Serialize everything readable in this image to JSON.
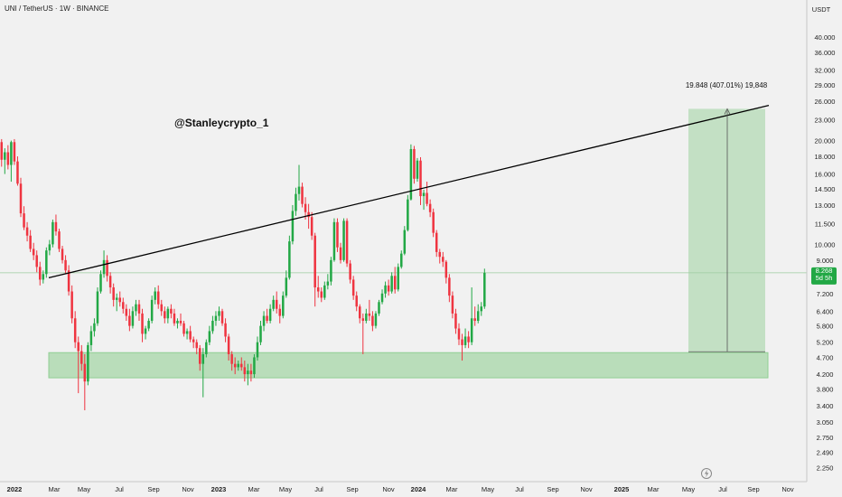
{
  "header": {
    "symbol_title": "UNI / TetherUS · 1W · BINANCE",
    "currency": "USDT"
  },
  "annotations": {
    "watermark": "@Stanleycrypto_1",
    "measure_label": "19.848 (407.01%) 19,848"
  },
  "last_price": {
    "value": "8.268",
    "countdown": "5d 5h"
  },
  "colors": {
    "up": "#22a845",
    "down": "#ef3440",
    "zone_fill": "#a5d6a7",
    "background": "#f1f1f1",
    "trendline": "#000000"
  },
  "chart_data": {
    "type": "candlestick",
    "symbol": "UNI / TetherUS",
    "interval": "1W",
    "exchange": "BINANCE",
    "y_scale": "log",
    "ylim": [
      2.15,
      44
    ],
    "price_ticks": [
      "40.000",
      "36.000",
      "32.000",
      "29.000",
      "26.000",
      "23.000",
      "20.000",
      "18.000",
      "16.000",
      "14.500",
      "13.000",
      "11.500",
      "10.000",
      "9.000",
      "8.268",
      "7.200",
      "6.400",
      "5.800",
      "5.200",
      "4.700",
      "4.200",
      "3.800",
      "3.400",
      "3.050",
      "2.750",
      "2.490",
      "2.250"
    ],
    "time_ticks": [
      "2022",
      "Mar",
      "May",
      "Jul",
      "Sep",
      "Nov",
      "2023",
      "Mar",
      "May",
      "Jul",
      "Sep",
      "Nov",
      "2024",
      "Mar",
      "May",
      "Jul",
      "Sep",
      "Nov",
      "2025",
      "Mar",
      "May",
      "Jul",
      "Sep",
      "Nov"
    ],
    "year_ticks": [
      "2022",
      "2023",
      "2024",
      "2025"
    ],
    "support_zone": [
      4.1,
      4.85
    ],
    "trendline": [
      {
        "date": "2022-03",
        "price": 8.0
      },
      {
        "date": "2025-08",
        "price": 25.3
      }
    ],
    "measure": {
      "from": 4.88,
      "to": 24.73,
      "change": "19.848 (407.01%)"
    },
    "target_box": [
      4.88,
      24.73
    ],
    "last_price": 8.268,
    "candles": [
      [
        19.8,
        20.2,
        16.8,
        17.6
      ],
      [
        17.6,
        19.0,
        16.0,
        18.5
      ],
      [
        18.5,
        19.4,
        16.5,
        17.0
      ],
      [
        17.0,
        20.0,
        15.2,
        19.8
      ],
      [
        19.8,
        20.2,
        17.0,
        17.4
      ],
      [
        17.4,
        18.0,
        14.8,
        15.0
      ],
      [
        15.0,
        15.6,
        12.0,
        12.3
      ],
      [
        12.3,
        12.9,
        11.0,
        11.2
      ],
      [
        11.2,
        11.6,
        10.2,
        10.6
      ],
      [
        10.6,
        11.0,
        9.5,
        9.7
      ],
      [
        9.7,
        10.1,
        9.0,
        9.3
      ],
      [
        9.3,
        9.6,
        8.3,
        8.6
      ],
      [
        8.6,
        8.9,
        7.6,
        7.9
      ],
      [
        7.9,
        8.4,
        7.7,
        8.2
      ],
      [
        8.2,
        9.8,
        8.0,
        9.6
      ],
      [
        9.6,
        10.3,
        9.3,
        10.0
      ],
      [
        10.0,
        11.8,
        9.8,
        11.6
      ],
      [
        11.6,
        12.2,
        10.6,
        10.9
      ],
      [
        10.9,
        11.1,
        9.5,
        9.7
      ],
      [
        9.7,
        9.9,
        8.8,
        9.0
      ],
      [
        9.0,
        9.3,
        8.2,
        8.4
      ],
      [
        8.4,
        8.7,
        7.1,
        7.3
      ],
      [
        7.3,
        7.6,
        5.9,
        6.1
      ],
      [
        6.1,
        6.4,
        5.0,
        5.2
      ],
      [
        5.2,
        5.4,
        3.7,
        4.9
      ],
      [
        4.9,
        5.1,
        4.3,
        4.5
      ],
      [
        4.5,
        4.8,
        3.3,
        4.0
      ],
      [
        4.0,
        5.2,
        3.9,
        5.1
      ],
      [
        5.1,
        5.8,
        4.9,
        5.6
      ],
      [
        5.6,
        6.1,
        5.4,
        5.9
      ],
      [
        5.9,
        7.5,
        5.8,
        7.3
      ],
      [
        7.3,
        8.4,
        7.2,
        8.2
      ],
      [
        8.2,
        9.6,
        8.0,
        9.0
      ],
      [
        9.0,
        9.3,
        7.8,
        8.1
      ],
      [
        8.1,
        8.3,
        7.2,
        7.5
      ],
      [
        7.5,
        7.7,
        6.6,
        6.9
      ],
      [
        6.9,
        7.2,
        6.4,
        7.0
      ],
      [
        7.0,
        7.3,
        6.6,
        6.8
      ],
      [
        6.8,
        7.0,
        6.3,
        6.5
      ],
      [
        6.5,
        6.7,
        6.0,
        6.2
      ],
      [
        6.2,
        6.5,
        5.6,
        5.8
      ],
      [
        5.8,
        6.6,
        5.7,
        6.4
      ],
      [
        6.4,
        6.9,
        6.2,
        6.7
      ],
      [
        6.7,
        6.9,
        6.0,
        6.3
      ],
      [
        6.3,
        6.5,
        5.2,
        5.5
      ],
      [
        5.5,
        5.8,
        5.3,
        5.7
      ],
      [
        5.7,
        6.1,
        5.6,
        6.0
      ],
      [
        6.0,
        7.1,
        5.9,
        6.9
      ],
      [
        6.9,
        7.5,
        6.7,
        7.3
      ],
      [
        7.3,
        7.6,
        6.5,
        6.7
      ],
      [
        6.7,
        6.9,
        6.2,
        6.4
      ],
      [
        6.4,
        6.6,
        5.9,
        6.1
      ],
      [
        6.1,
        6.6,
        5.9,
        6.5
      ],
      [
        6.5,
        6.7,
        6.1,
        6.3
      ],
      [
        6.3,
        6.5,
        5.8,
        5.9
      ],
      [
        5.9,
        6.1,
        5.7,
        6.0
      ],
      [
        6.0,
        6.3,
        5.8,
        5.9
      ],
      [
        5.9,
        6.0,
        5.4,
        5.5
      ],
      [
        5.5,
        5.7,
        5.3,
        5.6
      ],
      [
        5.6,
        5.8,
        5.2,
        5.3
      ],
      [
        5.3,
        5.4,
        5.0,
        5.2
      ],
      [
        5.2,
        5.3,
        4.8,
        5.0
      ],
      [
        5.0,
        5.1,
        4.3,
        4.5
      ],
      [
        4.5,
        5.0,
        3.6,
        4.8
      ],
      [
        4.8,
        5.3,
        4.7,
        5.2
      ],
      [
        5.2,
        5.8,
        5.1,
        5.6
      ],
      [
        5.6,
        6.2,
        5.5,
        6.0
      ],
      [
        6.0,
        6.4,
        5.8,
        6.2
      ],
      [
        6.2,
        6.6,
        6.0,
        6.4
      ],
      [
        6.4,
        6.5,
        5.8,
        5.9
      ],
      [
        5.9,
        6.1,
        5.2,
        5.4
      ],
      [
        5.4,
        5.5,
        4.6,
        4.8
      ],
      [
        4.8,
        4.9,
        4.3,
        4.5
      ],
      [
        4.5,
        4.7,
        4.2,
        4.4
      ],
      [
        4.4,
        4.6,
        4.3,
        4.5
      ],
      [
        4.5,
        4.7,
        4.3,
        4.4
      ],
      [
        4.4,
        4.6,
        4.0,
        4.2
      ],
      [
        4.2,
        4.5,
        3.9,
        4.3
      ],
      [
        4.3,
        4.5,
        4.0,
        4.2
      ],
      [
        4.2,
        4.8,
        4.1,
        4.7
      ],
      [
        4.7,
        5.4,
        4.6,
        5.2
      ],
      [
        5.2,
        6.0,
        5.1,
        5.8
      ],
      [
        5.8,
        6.4,
        5.6,
        6.2
      ],
      [
        6.2,
        6.5,
        5.9,
        6.0
      ],
      [
        6.0,
        6.7,
        5.9,
        6.5
      ],
      [
        6.5,
        7.1,
        6.4,
        6.9
      ],
      [
        6.9,
        7.3,
        6.3,
        6.5
      ],
      [
        6.5,
        6.7,
        5.9,
        6.2
      ],
      [
        6.2,
        7.3,
        6.1,
        7.1
      ],
      [
        7.1,
        8.4,
        7.0,
        8.0
      ],
      [
        8.0,
        10.6,
        7.9,
        10.2
      ],
      [
        10.2,
        13.0,
        10.0,
        12.5
      ],
      [
        12.5,
        14.6,
        12.1,
        14.0
      ],
      [
        14.0,
        17.0,
        13.4,
        14.7
      ],
      [
        14.7,
        15.1,
        12.8,
        13.1
      ],
      [
        13.1,
        13.7,
        11.8,
        12.4
      ],
      [
        12.4,
        13.1,
        11.1,
        12.0
      ],
      [
        12.0,
        12.4,
        10.3,
        10.6
      ],
      [
        10.6,
        10.8,
        6.6,
        7.5
      ],
      [
        7.5,
        8.1,
        7.0,
        7.3
      ],
      [
        7.3,
        7.5,
        6.8,
        7.0
      ],
      [
        7.0,
        7.8,
        6.9,
        7.6
      ],
      [
        7.6,
        8.2,
        7.4,
        7.8
      ],
      [
        7.8,
        9.2,
        7.6,
        9.0
      ],
      [
        9.0,
        11.9,
        8.9,
        11.6
      ],
      [
        11.6,
        11.9,
        9.5,
        9.8
      ],
      [
        9.8,
        10.1,
        8.8,
        9.0
      ],
      [
        9.0,
        11.9,
        8.9,
        11.7
      ],
      [
        11.7,
        11.9,
        8.6,
        8.8
      ],
      [
        8.8,
        9.0,
        7.7,
        7.9
      ],
      [
        7.9,
        8.1,
        6.9,
        7.1
      ],
      [
        7.1,
        7.3,
        6.4,
        6.6
      ],
      [
        6.6,
        6.7,
        5.9,
        6.1
      ],
      [
        6.1,
        6.3,
        4.8,
        6.0
      ],
      [
        6.0,
        6.5,
        5.9,
        6.3
      ],
      [
        6.3,
        6.9,
        6.0,
        6.2
      ],
      [
        6.2,
        6.4,
        5.6,
        5.8
      ],
      [
        5.8,
        6.4,
        5.7,
        6.3
      ],
      [
        6.3,
        6.9,
        6.2,
        6.8
      ],
      [
        6.8,
        7.4,
        6.7,
        7.2
      ],
      [
        7.2,
        7.8,
        7.0,
        7.6
      ],
      [
        7.6,
        7.9,
        7.1,
        7.3
      ],
      [
        7.3,
        8.3,
        7.2,
        8.1
      ],
      [
        8.1,
        8.6,
        7.2,
        7.4
      ],
      [
        7.4,
        8.8,
        7.3,
        8.6
      ],
      [
        8.6,
        9.6,
        8.5,
        9.4
      ],
      [
        9.4,
        11.3,
        9.3,
        11.0
      ],
      [
        11.0,
        13.9,
        10.9,
        13.5
      ],
      [
        13.5,
        19.5,
        13.4,
        18.9
      ],
      [
        18.9,
        19.3,
        15.0,
        15.5
      ],
      [
        15.5,
        17.8,
        15.2,
        17.5
      ],
      [
        17.5,
        17.9,
        13.0,
        13.8
      ],
      [
        13.8,
        14.4,
        12.6,
        14.1
      ],
      [
        14.1,
        15.2,
        12.9,
        13.1
      ],
      [
        13.1,
        13.5,
        12.0,
        12.4
      ],
      [
        12.4,
        12.7,
        10.5,
        10.8
      ],
      [
        10.8,
        11.0,
        9.2,
        9.5
      ],
      [
        9.5,
        9.7,
        8.8,
        9.2
      ],
      [
        9.2,
        9.5,
        8.6,
        8.9
      ],
      [
        8.9,
        9.0,
        7.7,
        8.0
      ],
      [
        8.0,
        8.2,
        6.8,
        7.1
      ],
      [
        7.1,
        7.3,
        6.1,
        6.3
      ],
      [
        6.3,
        6.5,
        5.5,
        5.7
      ],
      [
        5.7,
        5.9,
        5.1,
        5.3
      ],
      [
        5.3,
        5.5,
        4.6,
        5.1
      ],
      [
        5.1,
        5.7,
        5.0,
        5.4
      ],
      [
        5.4,
        5.6,
        5.0,
        5.2
      ],
      [
        5.2,
        7.5,
        5.1,
        6.1
      ],
      [
        6.1,
        6.6,
        5.8,
        6.0
      ],
      [
        6.0,
        6.7,
        5.9,
        6.4
      ],
      [
        6.4,
        6.8,
        6.2,
        6.6
      ],
      [
        6.6,
        8.5,
        6.5,
        8.268
      ]
    ]
  }
}
